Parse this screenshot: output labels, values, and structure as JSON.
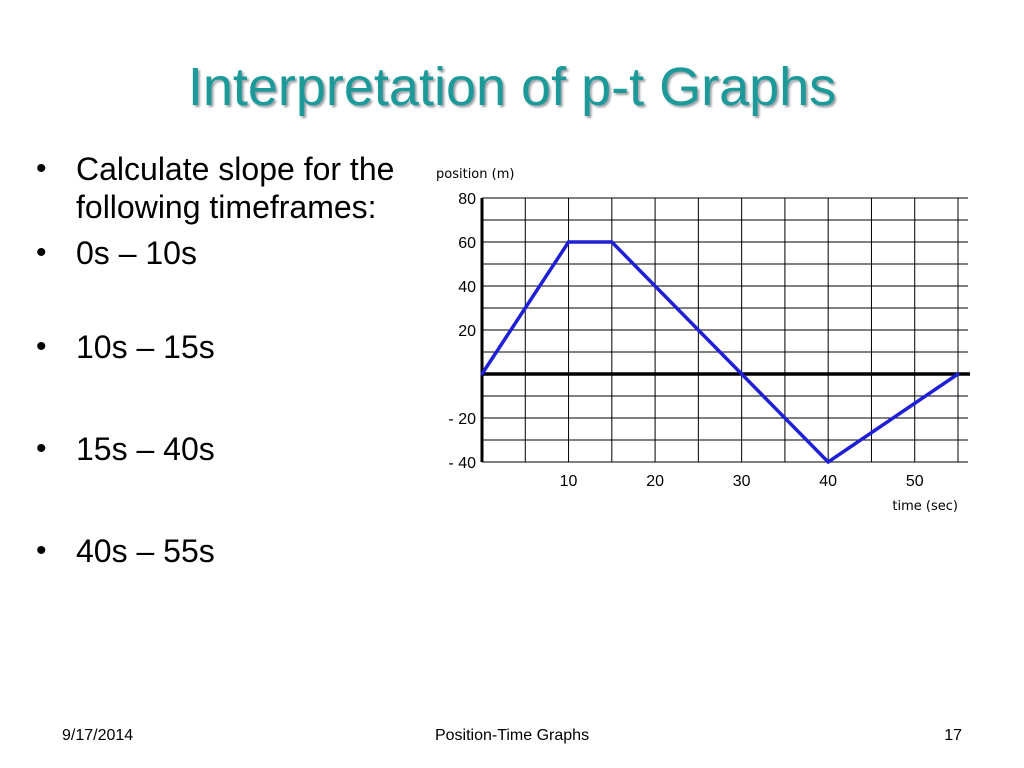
{
  "slide": {
    "title": "Interpretation of p-t Graphs",
    "bullets": [
      "Calculate slope for the following timeframes:",
      "0s – 10s",
      "10s – 15s",
      "15s – 40s",
      "40s – 55s"
    ]
  },
  "footer": {
    "date": "9/17/2014",
    "center": "Position-Time Graphs",
    "page": "17"
  },
  "colors": {
    "title": "#1c9a9a",
    "series_line": "#1f1fd6",
    "grid": "#000000"
  },
  "chart_data": {
    "type": "line",
    "title": "",
    "xlabel": "time (sec)",
    "ylabel": "position (m)",
    "xlim": [
      0,
      55
    ],
    "ylim": [
      -40,
      80
    ],
    "x_ticks": [
      10,
      20,
      30,
      40,
      50
    ],
    "x_tick_labels": [
      "10",
      "20",
      "30",
      "40",
      "50"
    ],
    "y_ticks": [
      80,
      60,
      40,
      20,
      -20,
      -40
    ],
    "y_tick_labels": [
      "80",
      "60",
      "40",
      "20",
      "- 20",
      "- 40"
    ],
    "grid": true,
    "series": [
      {
        "x": [
          0,
          10,
          15,
          30,
          40,
          55
        ],
        "y": [
          0,
          60,
          60,
          0,
          -40,
          0
        ]
      }
    ]
  }
}
